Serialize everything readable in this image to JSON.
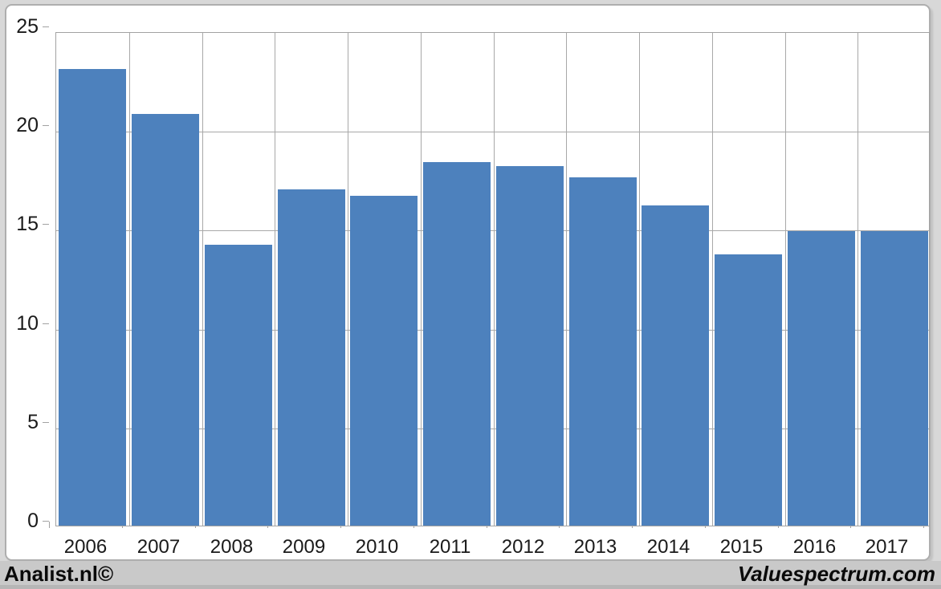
{
  "footer": {
    "left_credit": "Analist.nl©",
    "right_credit": "Valuespectrum.com"
  },
  "chart_data": {
    "type": "bar",
    "title": "",
    "xlabel": "",
    "ylabel": "",
    "categories": [
      "2006",
      "2007",
      "2008",
      "2009",
      "2010",
      "2011",
      "2012",
      "2013",
      "2014",
      "2015",
      "2016",
      "2017"
    ],
    "values": [
      23.1,
      20.8,
      14.2,
      17.0,
      16.7,
      18.4,
      18.2,
      17.6,
      16.2,
      13.7,
      14.9,
      14.9
    ],
    "ylim": [
      0,
      25
    ],
    "yticks": [
      0,
      5,
      10,
      15,
      20,
      25
    ],
    "grid": true,
    "legend_position": "none",
    "bar_color": "#4d81bd",
    "gridline_color": "#a8a8a8",
    "axis_text_color": "#1a1a1a"
  }
}
